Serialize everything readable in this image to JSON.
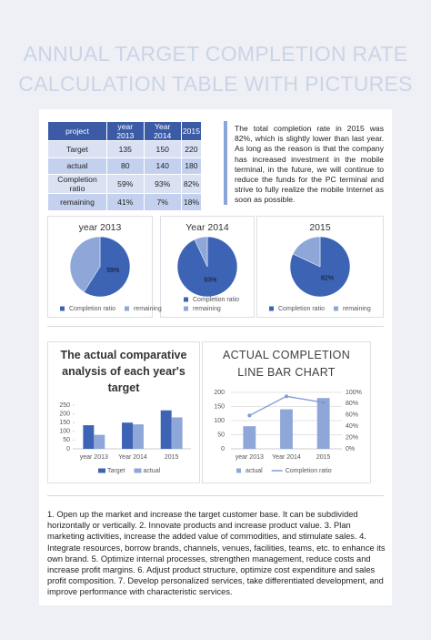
{
  "title": [
    "ANNUAL TARGET COMPLETION RATE",
    "CALCULATION TABLE WITH PICTURES"
  ],
  "table": {
    "header": [
      "project",
      "year 2013",
      "Year 2014",
      "2015"
    ],
    "rows": [
      [
        "Target",
        "135",
        "150",
        "220"
      ],
      [
        "actual",
        "80",
        "140",
        "180"
      ],
      [
        "Completion ratio",
        "59%",
        "93%",
        "82%"
      ],
      [
        "remaining",
        "41%",
        "7%",
        "18%"
      ]
    ]
  },
  "summary": "The total completion rate in 2015 was 82%, which is slightly lower than last year. As long as the reason is that the company has increased investment in the mobile terminal, in the future, we will continue to reduce the funds for the PC terminal and strive to fully realize the mobile Internet as soon as possible.",
  "chart_data": [
    {
      "type": "pie",
      "title": "year 2013",
      "categories": [
        "Completion ratio",
        "remaining"
      ],
      "values": [
        59,
        41
      ],
      "value_labels": [
        "59%",
        null
      ],
      "colors": [
        "#3d63b5",
        "#8fa7d8"
      ]
    },
    {
      "type": "pie",
      "title": "Year 2014",
      "categories": [
        "Completion ratio",
        "remaining"
      ],
      "values": [
        93,
        7
      ],
      "value_labels": [
        "93%",
        null
      ],
      "colors": [
        "#3d63b5",
        "#8fa7d8"
      ]
    },
    {
      "type": "pie",
      "title": "2015",
      "categories": [
        "Completion ratio",
        "remaining"
      ],
      "values": [
        82,
        18
      ],
      "value_labels": [
        "82%",
        null
      ],
      "colors": [
        "#3d63b5",
        "#8fa7d8"
      ]
    },
    {
      "type": "bar",
      "title": "The actual comparative analysis of each year's target",
      "categories": [
        "year 2013",
        "Year 2014",
        "2015"
      ],
      "series": [
        {
          "name": "Target",
          "color": "#3d63b5",
          "values": [
            135,
            150,
            220
          ]
        },
        {
          "name": "actual",
          "color": "#8fa7d8",
          "values": [
            80,
            140,
            180
          ]
        }
      ],
      "ylim": [
        0,
        250
      ],
      "yticks": [
        0,
        50,
        100,
        150,
        200,
        250
      ],
      "grid": false
    },
    {
      "type": "combo",
      "title": "ACTUAL COMPLETION LINE BAR CHART",
      "categories": [
        "year 2013",
        "Year 2014",
        "2015"
      ],
      "series": [
        {
          "name": "actual",
          "type": "bar",
          "color": "#8fa7d8",
          "values": [
            80,
            140,
            180
          ]
        },
        {
          "name": "Completion ratio",
          "type": "line",
          "axis": "y2",
          "color": "#7f9bd3",
          "values": [
            59,
            93,
            82
          ]
        }
      ],
      "ylim": [
        0,
        200
      ],
      "yticks": [
        0,
        50,
        100,
        150,
        200
      ],
      "y2lim": [
        0,
        100
      ],
      "y2ticks": [
        {
          "value": 0,
          "label": "0%"
        },
        {
          "value": 20,
          "label": "20%"
        },
        {
          "value": 40,
          "label": "40%"
        },
        {
          "value": 60,
          "label": "60%"
        },
        {
          "value": 80,
          "label": "80%"
        },
        {
          "value": 100,
          "label": "100%"
        }
      ],
      "grid": true
    }
  ],
  "notes": "1. Open up the market and increase the target customer base. It can be subdivided horizontally or vertically. 2. Innovate products and increase product value. 3. Plan marketing activities, increase the added value of commodities, and stimulate sales. 4. Integrate resources, borrow brands, channels, venues, facilities, teams, etc. to enhance its own brand. 5. Optimize internal processes, strengthen management, reduce costs and increase profit margins. 6. Adjust product structure, optimize cost expenditure and sales profit composition. 7. Develop personalized services, take differentiated development, and improve performance with characteristic services."
}
